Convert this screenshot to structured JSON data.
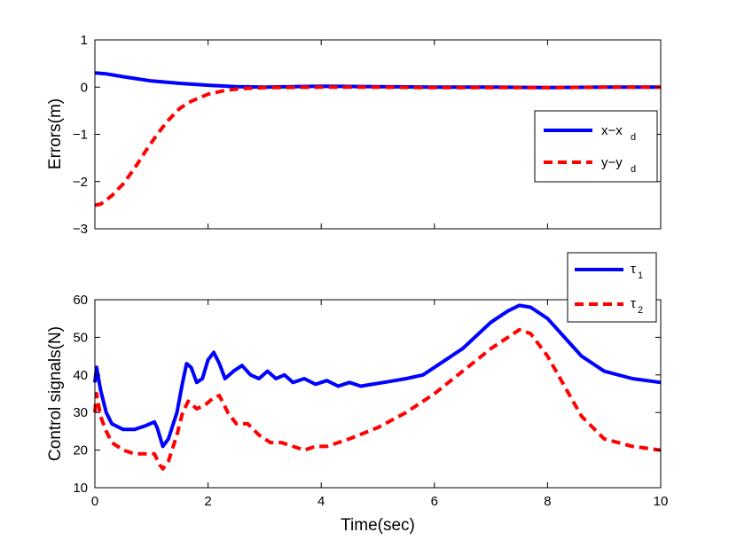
{
  "chart_data": [
    {
      "type": "line",
      "xlabel": "",
      "ylabel": "Errors(m)",
      "xlim": [
        0,
        10
      ],
      "ylim": [
        -3,
        1
      ],
      "xticks": [
        "",
        "",
        "",
        "",
        "",
        ""
      ],
      "yticks": [
        "1",
        "0",
        "−1",
        "−2",
        "−3"
      ],
      "ytick_values": [
        1,
        0,
        -1,
        -2,
        -3
      ],
      "legend_position": "right",
      "series": [
        {
          "name": "x−x",
          "subscript": "d",
          "color": "#0000ff",
          "style": "solid",
          "x": [
            0,
            0.2,
            0.5,
            1,
            1.5,
            2,
            2.5,
            3,
            4,
            5,
            6,
            7,
            8,
            9,
            10
          ],
          "y": [
            0.3,
            0.28,
            0.22,
            0.13,
            0.08,
            0.04,
            0.01,
            0.0,
            0.02,
            0.01,
            0.0,
            0.0,
            -0.01,
            0.0,
            0.0
          ]
        },
        {
          "name": "y−y",
          "subscript": "d",
          "color": "#ff0000",
          "style": "dashed",
          "x": [
            0,
            0.1,
            0.3,
            0.5,
            0.7,
            0.9,
            1.1,
            1.3,
            1.5,
            1.7,
            2.0,
            2.3,
            2.6,
            3.0,
            4.0,
            5.0,
            6.0,
            7.0,
            8.0,
            9.0,
            10.0
          ],
          "y": [
            -2.5,
            -2.48,
            -2.3,
            -2.05,
            -1.72,
            -1.35,
            -1.0,
            -0.7,
            -0.45,
            -0.3,
            -0.15,
            -0.07,
            -0.03,
            -0.01,
            0.0,
            0.0,
            -0.01,
            -0.01,
            -0.01,
            0.0,
            0.0
          ]
        }
      ]
    },
    {
      "type": "line",
      "xlabel": "Time(sec)",
      "ylabel": "Control signals(N)",
      "xlim": [
        0,
        10
      ],
      "ylim": [
        10,
        60
      ],
      "xticks": [
        "0",
        "2",
        "4",
        "6",
        "8",
        "10"
      ],
      "xtick_values": [
        0,
        2,
        4,
        6,
        8,
        10
      ],
      "yticks": [
        "60",
        "50",
        "40",
        "30",
        "20",
        "10"
      ],
      "ytick_values": [
        60,
        50,
        40,
        30,
        20,
        10
      ],
      "legend_position": "top-right outside",
      "series": [
        {
          "name": "τ",
          "subscript": "1",
          "color": "#0000ff",
          "style": "solid",
          "x": [
            0,
            0.03,
            0.1,
            0.2,
            0.3,
            0.5,
            0.7,
            0.9,
            1.05,
            1.1,
            1.2,
            1.3,
            1.45,
            1.55,
            1.62,
            1.7,
            1.8,
            1.9,
            2.0,
            2.1,
            2.2,
            2.3,
            2.45,
            2.6,
            2.75,
            2.9,
            3.05,
            3.2,
            3.35,
            3.5,
            3.7,
            3.9,
            4.1,
            4.3,
            4.5,
            4.7,
            4.9,
            5.1,
            5.3,
            5.5,
            5.8,
            6.0,
            6.5,
            7.0,
            7.3,
            7.5,
            7.7,
            8.0,
            8.3,
            8.6,
            9.0,
            9.5,
            10.0
          ],
          "y": [
            38,
            42,
            36,
            30,
            27,
            25.5,
            25.5,
            26.5,
            27.5,
            26,
            21,
            23,
            30,
            38,
            43,
            42,
            38,
            39,
            44,
            46,
            43,
            39,
            41,
            42.5,
            40,
            39,
            41,
            39,
            40,
            38,
            39,
            37.5,
            38.5,
            37,
            38,
            37,
            37.5,
            38,
            38.5,
            39,
            40,
            42,
            47,
            54,
            57,
            58.5,
            58,
            55,
            50,
            45,
            41,
            39,
            38
          ]
        },
        {
          "name": "τ",
          "subscript": "2",
          "color": "#ff0000",
          "style": "dashed",
          "x": [
            0,
            0.03,
            0.1,
            0.2,
            0.3,
            0.5,
            0.7,
            0.9,
            1.05,
            1.15,
            1.2,
            1.3,
            1.45,
            1.55,
            1.65,
            1.8,
            1.95,
            2.1,
            2.2,
            2.35,
            2.5,
            2.7,
            2.9,
            3.1,
            3.3,
            3.5,
            3.7,
            3.9,
            4.1,
            4.5,
            5.0,
            5.5,
            6.0,
            6.5,
            7.0,
            7.3,
            7.5,
            7.7,
            8.0,
            8.3,
            8.6,
            9.0,
            9.5,
            10.0
          ],
          "y": [
            30,
            35,
            29,
            25,
            22,
            20,
            19,
            19,
            19,
            16,
            15,
            17,
            24,
            30,
            33,
            31,
            32,
            34,
            34.5,
            30,
            27,
            27,
            24,
            22,
            22,
            21,
            20,
            21,
            21,
            23,
            26,
            30,
            35,
            41,
            47,
            50,
            52,
            51,
            45,
            37,
            29,
            23,
            21,
            20
          ]
        }
      ]
    }
  ]
}
